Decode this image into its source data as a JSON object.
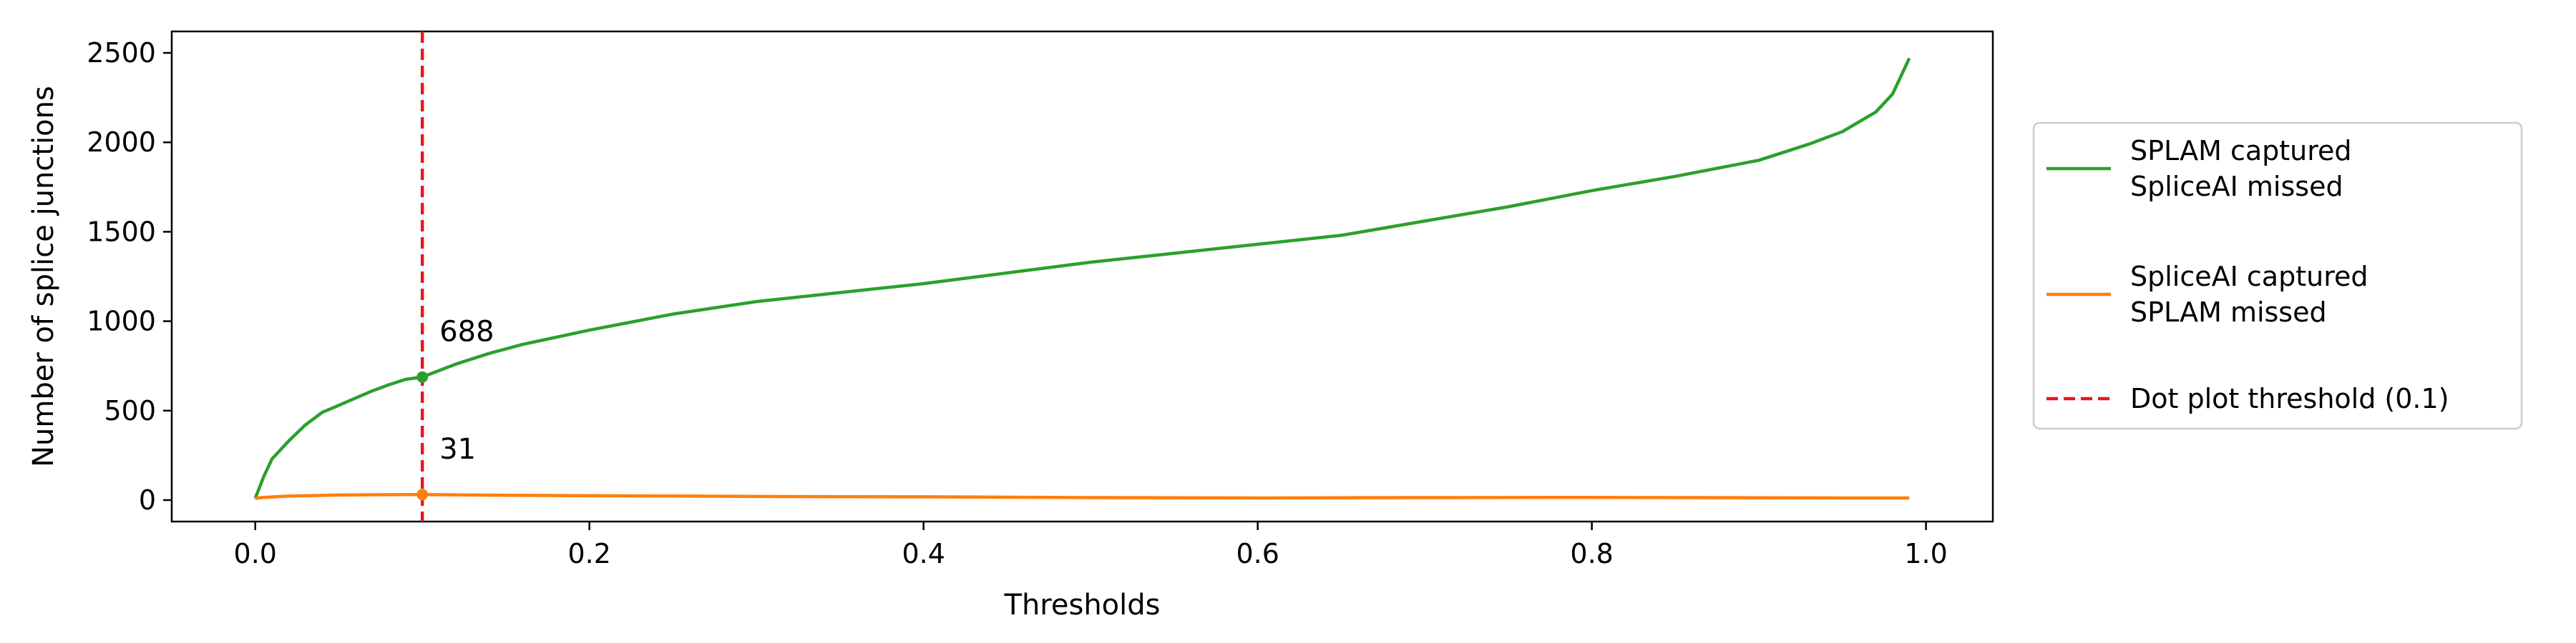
{
  "chart_data": {
    "type": "line",
    "xlabel": "Thresholds",
    "ylabel": "Number of splice junctions",
    "xlim": [
      -0.05,
      1.04
    ],
    "ylim": [
      -120,
      2620
    ],
    "x_ticks": [
      0.0,
      0.2,
      0.4,
      0.6,
      0.8,
      1.0
    ],
    "x_tick_labels": [
      "0.0",
      "0.2",
      "0.4",
      "0.6",
      "0.8",
      "1.0"
    ],
    "y_ticks": [
      0,
      500,
      1000,
      1500,
      2000,
      2500
    ],
    "y_tick_labels": [
      "0",
      "500",
      "1000",
      "1500",
      "2000",
      "2500"
    ],
    "grid": false,
    "legend_position": "outside-right",
    "series": [
      {
        "name": "SPLAM captured\nSpliceAI missed",
        "color": "#2ca02c",
        "x": [
          0.0,
          0.005,
          0.01,
          0.02,
          0.03,
          0.04,
          0.05,
          0.06,
          0.07,
          0.08,
          0.09,
          0.1,
          0.12,
          0.14,
          0.16,
          0.18,
          0.2,
          0.25,
          0.3,
          0.35,
          0.4,
          0.45,
          0.5,
          0.55,
          0.6,
          0.65,
          0.7,
          0.75,
          0.8,
          0.85,
          0.9,
          0.93,
          0.95,
          0.97,
          0.98,
          0.99
        ],
        "y": [
          10,
          130,
          230,
          330,
          420,
          490,
          530,
          570,
          610,
          645,
          675,
          688,
          760,
          820,
          870,
          910,
          950,
          1040,
          1110,
          1160,
          1210,
          1270,
          1330,
          1380,
          1430,
          1480,
          1560,
          1640,
          1730,
          1810,
          1900,
          1990,
          2060,
          2170,
          2270,
          2470
        ]
      },
      {
        "name": "SpliceAI captured\nSPLAM missed",
        "color": "#ff7f0e",
        "x": [
          0.0,
          0.005,
          0.02,
          0.05,
          0.08,
          0.1,
          0.15,
          0.2,
          0.25,
          0.3,
          0.4,
          0.5,
          0.6,
          0.7,
          0.8,
          0.9,
          0.95,
          0.99
        ],
        "y": [
          10,
          15,
          22,
          28,
          30,
          31,
          27,
          24,
          23,
          20,
          18,
          14,
          12,
          14,
          15,
          13,
          12,
          12
        ]
      }
    ],
    "threshold_line": {
      "x": 0.1,
      "label": "Dot plot threshold (0.1)",
      "color": "#e41a1c"
    },
    "annotations": [
      {
        "x": 0.1,
        "y": 688,
        "text": "688",
        "color": "#2ca02c"
      },
      {
        "x": 0.1,
        "y": 31,
        "text": "31",
        "color": "#ff7f0e"
      }
    ]
  }
}
